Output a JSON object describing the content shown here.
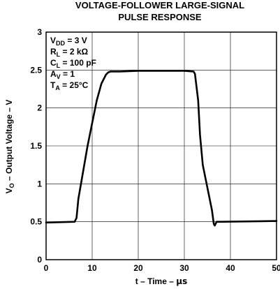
{
  "chart_data": {
    "type": "line",
    "title": [
      "VOLTAGE-FOLLOWER LARGE-SIGNAL",
      "PULSE RESPONSE"
    ],
    "xlabel": {
      "pre": "t – Time – ",
      "unit": "μs"
    },
    "ylabel": {
      "main": "V",
      "sub": "O",
      "rest": " – Output Voltage – V"
    },
    "xlim": [
      0,
      50
    ],
    "ylim": [
      0,
      3
    ],
    "xticks": [
      "0",
      "10",
      "20",
      "30",
      "40",
      "50"
    ],
    "yticks": [
      "0",
      "0.5",
      "1",
      "1.5",
      "2",
      "2.5",
      "3"
    ],
    "grid": true,
    "conditions": [
      {
        "main": "V",
        "sub": "DD",
        "rest": " = 3 V"
      },
      {
        "main": "R",
        "sub": "L",
        "rest": " = 2 kΩ"
      },
      {
        "main": "C",
        "sub": "L",
        "rest": " = 100 pF"
      },
      {
        "main": "A",
        "sub": "V",
        "rest": " = 1"
      },
      {
        "main": "T",
        "sub": "A",
        "rest": " = 25°C"
      }
    ],
    "series": [
      {
        "x": [
          0,
          6.2,
          6.6,
          7.0,
          8.0,
          9.0,
          10.0,
          11.0,
          12.0,
          13.0,
          13.5,
          14.0,
          16,
          20,
          25,
          30,
          32.0,
          32.3,
          33.0,
          33.4,
          34.0,
          35.0,
          36.0,
          36.4,
          36.6,
          37.0,
          38,
          50
        ],
        "y": [
          0.49,
          0.5,
          0.55,
          0.8,
          1.15,
          1.5,
          1.8,
          2.1,
          2.32,
          2.44,
          2.47,
          2.48,
          2.48,
          2.49,
          2.49,
          2.49,
          2.48,
          2.45,
          2.1,
          1.65,
          1.25,
          0.95,
          0.65,
          0.47,
          0.45,
          0.5,
          0.5,
          0.51
        ]
      }
    ]
  }
}
